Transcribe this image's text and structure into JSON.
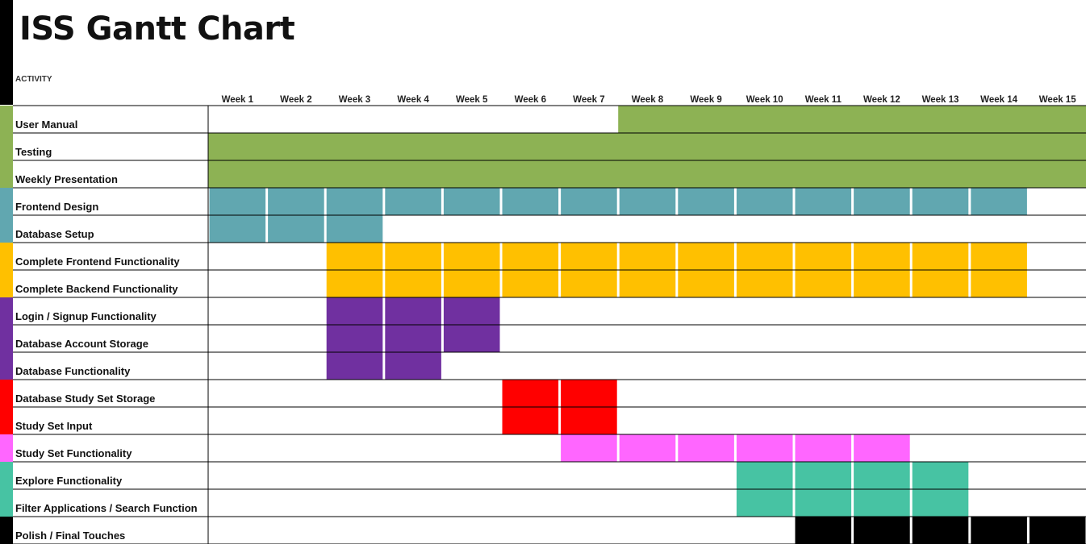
{
  "title": "ISS Gantt Chart",
  "activity_header": "ACTIVITY",
  "chart_data": {
    "type": "gantt",
    "categories": [
      "Week 1",
      "Week 2",
      "Week 3",
      "Week 4",
      "Week 5",
      "Week 6",
      "Week 7",
      "Week 8",
      "Week 9",
      "Week 10",
      "Week 11",
      "Week 12",
      "Week 13",
      "Week 14",
      "Week 15"
    ],
    "tasks": [
      {
        "name": "User Manual",
        "color": "#8db254",
        "weeks": [
          8,
          15
        ],
        "style": "span"
      },
      {
        "name": "Testing",
        "color": "#8db254",
        "weeks": [
          1,
          15
        ],
        "style": "span"
      },
      {
        "name": "Weekly Presentation",
        "color": "#8db254",
        "weeks": [
          1,
          15
        ],
        "style": "span"
      },
      {
        "name": "Frontend Design",
        "color": "#61a7b0",
        "weeks": [
          1,
          14
        ],
        "style": "cells"
      },
      {
        "name": "Database Setup",
        "color": "#61a7b0",
        "weeks": [
          1,
          3
        ],
        "style": "cells"
      },
      {
        "name": "Complete Frontend Functionality",
        "color": "#ffc000",
        "weeks": [
          3,
          14
        ],
        "style": "cells"
      },
      {
        "name": "Complete Backend Functionality",
        "color": "#ffc000",
        "weeks": [
          3,
          14
        ],
        "style": "cells"
      },
      {
        "name": "Login / Signup Functionality",
        "color": "#7030a0",
        "weeks": [
          3,
          5
        ],
        "style": "cells"
      },
      {
        "name": "Database Account Storage",
        "color": "#7030a0",
        "weeks": [
          3,
          5
        ],
        "style": "cells"
      },
      {
        "name": "Database Functionality",
        "color": "#7030a0",
        "weeks": [
          3,
          4
        ],
        "style": "cells"
      },
      {
        "name": "Database Study Set Storage",
        "color": "#ff0000",
        "weeks": [
          6,
          7
        ],
        "style": "cells"
      },
      {
        "name": "Study Set Input",
        "color": "#ff0000",
        "weeks": [
          6,
          7
        ],
        "style": "cells"
      },
      {
        "name": "Study Set Functionality",
        "color": "#ff66ff",
        "weeks": [
          7,
          12
        ],
        "style": "cells"
      },
      {
        "name": "Explore Functionality",
        "color": "#47c3a3",
        "weeks": [
          10,
          13
        ],
        "style": "cells"
      },
      {
        "name": "Filter Applications / Search Function",
        "color": "#47c3a3",
        "weeks": [
          10,
          13
        ],
        "style": "cells"
      },
      {
        "name": "Polish / Final Touches",
        "color": "#000000",
        "weeks": [
          11,
          15
        ],
        "style": "cells"
      }
    ]
  }
}
